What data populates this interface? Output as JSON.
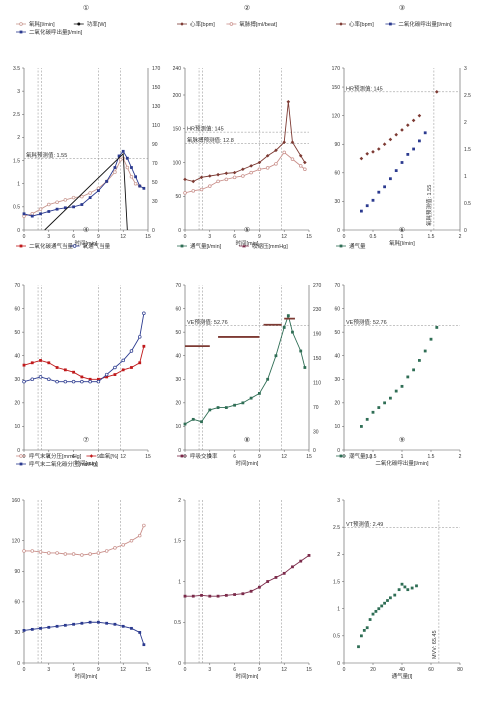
{
  "colors": {
    "tan": "#c8978f",
    "navy": "#2b3a8f",
    "black": "#111111",
    "maroon": "#7a3b35",
    "pink": "#c98f8a",
    "red": "#c0191b",
    "green": "#2f6e55",
    "brown": "#7d3a33",
    "purple": "#7b2a4a",
    "ref": "#8a8a8a"
  },
  "chart_data": [
    {
      "id": "p1",
      "type": "line",
      "number": "①",
      "xlabel": "时间[min]",
      "xlim": [
        0,
        15
      ],
      "ylim": [
        0,
        3.5
      ],
      "y2lim": [
        0,
        170
      ],
      "xticks": [
        "0",
        "3",
        "6",
        "9",
        "12",
        "15"
      ],
      "yticks": [
        "0",
        "0.5",
        "1",
        "1.5",
        "2",
        "2.5",
        "3",
        "3.5"
      ],
      "y2ticks": [
        "0",
        "30",
        "50",
        "70",
        "90",
        "110",
        "130",
        "150",
        "170"
      ],
      "vlines": [
        1.7,
        2.1,
        9,
        11.7
      ],
      "hlines": [
        {
          "y": 1.55,
          "label": "氧耗预测值: 1.55"
        }
      ],
      "legend": [
        {
          "label": "氧耗[l/min]",
          "color": "tan",
          "marker": "circle-open"
        },
        {
          "label": "功率[W]",
          "color": "black",
          "marker": "circle"
        },
        {
          "label": "二氧化碳呼出量[l/min]",
          "color": "navy",
          "marker": "square"
        }
      ],
      "series": [
        {
          "name": "氧耗[l/min]",
          "color": "tan",
          "axis": "y",
          "x": [
            0,
            1,
            2,
            3,
            4,
            5,
            6,
            7,
            8,
            9,
            10,
            11,
            11.7,
            12,
            12.5,
            13,
            13.5,
            14
          ],
          "values": [
            0.3,
            0.35,
            0.45,
            0.55,
            0.6,
            0.65,
            0.7,
            0.72,
            0.8,
            0.9,
            1.05,
            1.25,
            1.52,
            1.55,
            1.35,
            1.15,
            1.0,
            0.95
          ]
        },
        {
          "name": "二氧化碳呼出量[l/min]",
          "color": "navy",
          "axis": "y",
          "x": [
            0,
            1,
            2,
            3,
            4,
            5,
            6,
            7,
            8,
            9,
            10,
            11,
            11.5,
            12,
            12.5,
            13,
            13.5,
            14,
            14.5
          ],
          "values": [
            0.35,
            0.3,
            0.35,
            0.4,
            0.45,
            0.48,
            0.5,
            0.55,
            0.7,
            0.85,
            1.05,
            1.35,
            1.6,
            1.7,
            1.55,
            1.35,
            1.15,
            0.95,
            0.9
          ]
        },
        {
          "name": "功率[W]",
          "color": "black",
          "axis": "y2",
          "x": [
            2.5,
            12,
            12.5
          ],
          "values": [
            0,
            80,
            0
          ]
        }
      ]
    },
    {
      "id": "p2",
      "type": "line",
      "number": "②",
      "xlabel": "时间[min]",
      "xlim": [
        0,
        15
      ],
      "ylim": [
        0,
        240
      ],
      "y2lim": null,
      "xticks": [
        "0",
        "3",
        "6",
        "9",
        "12",
        "15"
      ],
      "yticks": [
        "0",
        "50",
        "100",
        "150",
        "200",
        "240"
      ],
      "y2ticks": [],
      "vlines": [
        1.7,
        2.1,
        9,
        11.7
      ],
      "hlines": [
        {
          "y": 128,
          "label": "氧脉搏预测值: 12.8"
        },
        {
          "y": 145,
          "label": "HR预测值: 145"
        }
      ],
      "legend": [
        {
          "label": "心率[bpm]",
          "color": "brown",
          "marker": "diamond"
        },
        {
          "label": "氧脉搏[ml/beat]",
          "color": "pink",
          "marker": "circle-open"
        }
      ],
      "series": [
        {
          "name": "心率[bpm]",
          "color": "brown",
          "axis": "y",
          "x": [
            0,
            1,
            2,
            3,
            4,
            5,
            6,
            7,
            8,
            9,
            10,
            11,
            12,
            12.5,
            13,
            14,
            14.5
          ],
          "values": [
            75,
            72,
            78,
            80,
            82,
            84,
            85,
            90,
            95,
            100,
            110,
            118,
            130,
            190,
            130,
            110,
            100
          ]
        },
        {
          "name": "氧脉搏[ml/beat]",
          "color": "pink",
          "axis": "y",
          "x": [
            0,
            1,
            2,
            3,
            4,
            5,
            6,
            7,
            8,
            9,
            10,
            11,
            12,
            13,
            14,
            14.5
          ],
          "values": [
            55,
            58,
            60,
            65,
            72,
            75,
            78,
            80,
            85,
            90,
            92,
            98,
            115,
            105,
            95,
            90
          ]
        }
      ]
    },
    {
      "id": "p3",
      "type": "scatter",
      "number": "③",
      "xlabel": "氧耗[l/min]",
      "xlim": [
        0,
        2
      ],
      "ylim": [
        0,
        170
      ],
      "y2lim": [
        0,
        3
      ],
      "xticks": [
        "0",
        "0.5",
        "1",
        "1.5",
        "2"
      ],
      "yticks": [
        "0",
        "30",
        "60",
        "90",
        "120",
        "150",
        "170"
      ],
      "y2ticks": [
        "0",
        "0.5",
        "1",
        "1.5",
        "2",
        "2.5",
        "3"
      ],
      "vlines": [
        1.55
      ],
      "vline_label": "氧耗预测值: 1.55",
      "hlines": [
        {
          "y": 145,
          "label": "HR预测值: 145"
        }
      ],
      "legend": [
        {
          "label": "心率[bpm]",
          "color": "brown",
          "marker": "diamond"
        },
        {
          "label": "二氧化碳呼出量[l/min]",
          "color": "navy",
          "marker": "square"
        }
      ],
      "series": [
        {
          "name": "心率[bpm]",
          "color": "brown",
          "axis": "y",
          "x": [
            0.3,
            0.4,
            0.5,
            0.6,
            0.7,
            0.8,
            0.9,
            1.0,
            1.1,
            1.2,
            1.3,
            1.6
          ],
          "values": [
            75,
            80,
            82,
            85,
            90,
            95,
            100,
            105,
            110,
            115,
            120,
            145
          ]
        },
        {
          "name": "二氧化碳呼出量[l/min]",
          "color": "navy",
          "axis": "y2",
          "x": [
            0.3,
            0.4,
            0.5,
            0.6,
            0.7,
            0.8,
            0.9,
            1.0,
            1.1,
            1.2,
            1.3,
            1.4
          ],
          "values": [
            0.35,
            0.45,
            0.55,
            0.7,
            0.8,
            0.95,
            1.1,
            1.25,
            1.4,
            1.5,
            1.65,
            1.8
          ]
        }
      ]
    },
    {
      "id": "p4",
      "type": "line",
      "number": "④",
      "xlabel": "时间[min]",
      "xlim": [
        0,
        15
      ],
      "ylim": [
        0,
        70
      ],
      "y2lim": null,
      "xticks": [
        "0",
        "3",
        "6",
        "9",
        "12",
        "15"
      ],
      "yticks": [
        "0",
        "10",
        "20",
        "30",
        "40",
        "50",
        "60",
        "70"
      ],
      "y2ticks": [],
      "vlines": [
        1.7,
        2.1,
        9,
        11.7
      ],
      "hlines": [],
      "legend": [
        {
          "label": "二氧化碳通气当量",
          "color": "red",
          "marker": "square"
        },
        {
          "label": "氧通气当量",
          "color": "navy",
          "marker": "circle-open"
        }
      ],
      "series": [
        {
          "name": "二氧化碳通气当量",
          "color": "red",
          "axis": "y",
          "x": [
            0,
            1,
            2,
            3,
            4,
            5,
            6,
            7,
            8,
            9,
            10,
            11,
            12,
            13,
            14,
            14.5
          ],
          "values": [
            36,
            37,
            38,
            37,
            35,
            34,
            33,
            31,
            30,
            30,
            31,
            32,
            34,
            35,
            37,
            44
          ]
        },
        {
          "name": "氧通气当量",
          "color": "navy",
          "axis": "y",
          "x": [
            0,
            1,
            2,
            3,
            4,
            5,
            6,
            7,
            8,
            9,
            10,
            11,
            12,
            13,
            14,
            14.5
          ],
          "values": [
            29,
            30,
            31,
            30,
            29,
            29,
            29,
            29,
            29,
            29,
            32,
            35,
            38,
            42,
            48,
            58
          ]
        }
      ]
    },
    {
      "id": "p5",
      "type": "line",
      "number": "⑤",
      "xlabel": "时间[min]",
      "xlim": [
        0,
        15
      ],
      "ylim": [
        0,
        70
      ],
      "y2lim": [
        0,
        270
      ],
      "xticks": [
        "0",
        "3",
        "6",
        "9",
        "12",
        "15"
      ],
      "yticks": [
        "0",
        "10",
        "20",
        "30",
        "40",
        "50",
        "60",
        "70"
      ],
      "y2ticks": [
        "0",
        "30",
        "70",
        "110",
        "150",
        "190",
        "230",
        "270"
      ],
      "vlines": [
        1.7,
        2.1,
        9,
        11.7
      ],
      "hlines": [
        {
          "y": 52.76,
          "label": "VE预测值: 52.76"
        }
      ],
      "legend": [
        {
          "label": "通气量[l/min]",
          "color": "green",
          "marker": "square"
        },
        {
          "label": "收缩压[mmHg]",
          "color": "purple",
          "marker": "triangle"
        }
      ],
      "series": [
        {
          "name": "通气量[l/min]",
          "color": "green",
          "axis": "y",
          "x": [
            0,
            1,
            2,
            3,
            4,
            5,
            6,
            7,
            8,
            9,
            10,
            11,
            12,
            12.5,
            13,
            14,
            14.5
          ],
          "values": [
            11,
            13,
            12,
            17,
            18,
            18,
            19,
            20,
            22,
            24,
            30,
            40,
            52,
            57,
            50,
            42,
            35
          ]
        },
        {
          "name": "收缩压[mmHg]",
          "color": "brown",
          "axis": "y2",
          "x": [
            0,
            3,
            4,
            9,
            9.5,
            11.7,
            12,
            13.3
          ],
          "values": [
            170,
            170,
            185,
            185,
            205,
            205,
            215,
            215
          ],
          "step": true
        }
      ]
    },
    {
      "id": "p6",
      "type": "scatter",
      "number": "⑥",
      "xlabel": "二氧化碳呼出量[l/min]",
      "xlim": [
        0,
        2
      ],
      "ylim": [
        0,
        70
      ],
      "y2lim": null,
      "xticks": [
        "0",
        "0.5",
        "1",
        "1.5",
        "2"
      ],
      "yticks": [
        "0",
        "10",
        "20",
        "30",
        "40",
        "50",
        "60",
        "70"
      ],
      "y2ticks": [],
      "vlines": [],
      "hlines": [
        {
          "y": 52.76,
          "label": "VE预测值: 52.76"
        }
      ],
      "legend": [
        {
          "label": "通气量",
          "color": "green",
          "marker": "square"
        }
      ],
      "series": [
        {
          "name": "通气量",
          "color": "green",
          "axis": "y",
          "x": [
            0.3,
            0.4,
            0.5,
            0.6,
            0.7,
            0.8,
            0.9,
            1.0,
            1.1,
            1.2,
            1.3,
            1.4,
            1.5,
            1.6
          ],
          "values": [
            10,
            13,
            16,
            18,
            20,
            22,
            25,
            27,
            31,
            34,
            38,
            42,
            47,
            52
          ]
        }
      ]
    },
    {
      "id": "p7",
      "type": "line",
      "number": "⑦",
      "xlabel": "时间[min]",
      "xlim": [
        0,
        15
      ],
      "ylim": [
        0,
        160
      ],
      "y2lim": null,
      "xticks": [
        "0",
        "3",
        "6",
        "9",
        "12",
        "15"
      ],
      "yticks": [
        "0",
        "30",
        "60",
        "90",
        "120",
        "160"
      ],
      "y2ticks": [],
      "vlines": [
        1.7,
        2.1,
        9,
        11.7
      ],
      "hlines": [],
      "legend": [
        {
          "label": "呼气末氧分压[mmHg]",
          "color": "pink",
          "marker": "circle-open"
        },
        {
          "label": "血氧[%]",
          "color": "red",
          "marker": "diamond"
        },
        {
          "label": "呼气末二氧化碳分压[mmHg]",
          "color": "navy",
          "marker": "square"
        }
      ],
      "series": [
        {
          "name": "呼气末氧分压[mmHg]",
          "color": "pink",
          "axis": "y",
          "x": [
            0,
            1,
            2,
            3,
            4,
            5,
            6,
            7,
            8,
            9,
            10,
            11,
            12,
            13,
            14,
            14.5
          ],
          "values": [
            110,
            110,
            109,
            108,
            108,
            107,
            107,
            106,
            107,
            108,
            110,
            113,
            116,
            120,
            125,
            135
          ]
        },
        {
          "name": "呼气末二氧化碳分压[mmHg]",
          "color": "navy",
          "axis": "y",
          "x": [
            0,
            1,
            2,
            3,
            4,
            5,
            6,
            7,
            8,
            9,
            10,
            11,
            12,
            13,
            14,
            14.5
          ],
          "values": [
            32,
            33,
            34,
            35,
            36,
            37,
            38,
            39,
            40,
            40,
            39,
            38,
            36,
            34,
            30,
            18
          ]
        }
      ]
    },
    {
      "id": "p8",
      "type": "line",
      "number": "⑧",
      "xlabel": "时间[min]",
      "xlim": [
        0,
        15
      ],
      "ylim": [
        0,
        2
      ],
      "y2lim": null,
      "xticks": [
        "0",
        "3",
        "6",
        "9",
        "12",
        "15"
      ],
      "yticks": [
        "0",
        "0.5",
        "1",
        "1.5",
        "2"
      ],
      "y2ticks": [],
      "vlines": [
        1.7,
        2.1,
        9,
        11.7
      ],
      "hlines": [],
      "legend": [
        {
          "label": "呼吸交换率",
          "color": "purple",
          "marker": "square"
        }
      ],
      "series": [
        {
          "name": "呼吸交换率",
          "color": "purple",
          "axis": "y",
          "x": [
            0,
            1,
            2,
            3,
            4,
            5,
            6,
            7,
            8,
            9,
            10,
            11,
            12,
            13,
            14,
            15
          ],
          "values": [
            0.82,
            0.82,
            0.83,
            0.82,
            0.82,
            0.83,
            0.84,
            0.85,
            0.88,
            0.93,
            1.0,
            1.05,
            1.1,
            1.18,
            1.25,
            1.32
          ]
        }
      ]
    },
    {
      "id": "p9",
      "type": "scatter",
      "number": "⑨",
      "xlabel": "通气量[l]",
      "xlim": [
        0,
        80
      ],
      "ylim": [
        0,
        3
      ],
      "y2lim": null,
      "xticks": [
        "0",
        "20",
        "40",
        "60",
        "80"
      ],
      "yticks": [
        "0",
        "0.5",
        "1",
        "1.5",
        "2",
        "2.5",
        "3"
      ],
      "y2ticks": [],
      "vlines": [
        65.45
      ],
      "vline_label": "MVV: 65.45",
      "hlines": [
        {
          "y": 2.49,
          "label": "VT预测值: 2.49"
        }
      ],
      "legend": [
        {
          "label": "潮气量[L]",
          "color": "green",
          "marker": "square"
        }
      ],
      "series": [
        {
          "name": "潮气量[L]",
          "color": "green",
          "axis": "y",
          "x": [
            10,
            12,
            14,
            16,
            18,
            20,
            22,
            24,
            26,
            28,
            30,
            32,
            35,
            38,
            40,
            42,
            44,
            47,
            50
          ],
          "values": [
            0.3,
            0.5,
            0.6,
            0.65,
            0.8,
            0.9,
            0.95,
            1.0,
            1.05,
            1.1,
            1.15,
            1.2,
            1.25,
            1.35,
            1.45,
            1.4,
            1.35,
            1.38,
            1.42
          ]
        }
      ]
    }
  ]
}
